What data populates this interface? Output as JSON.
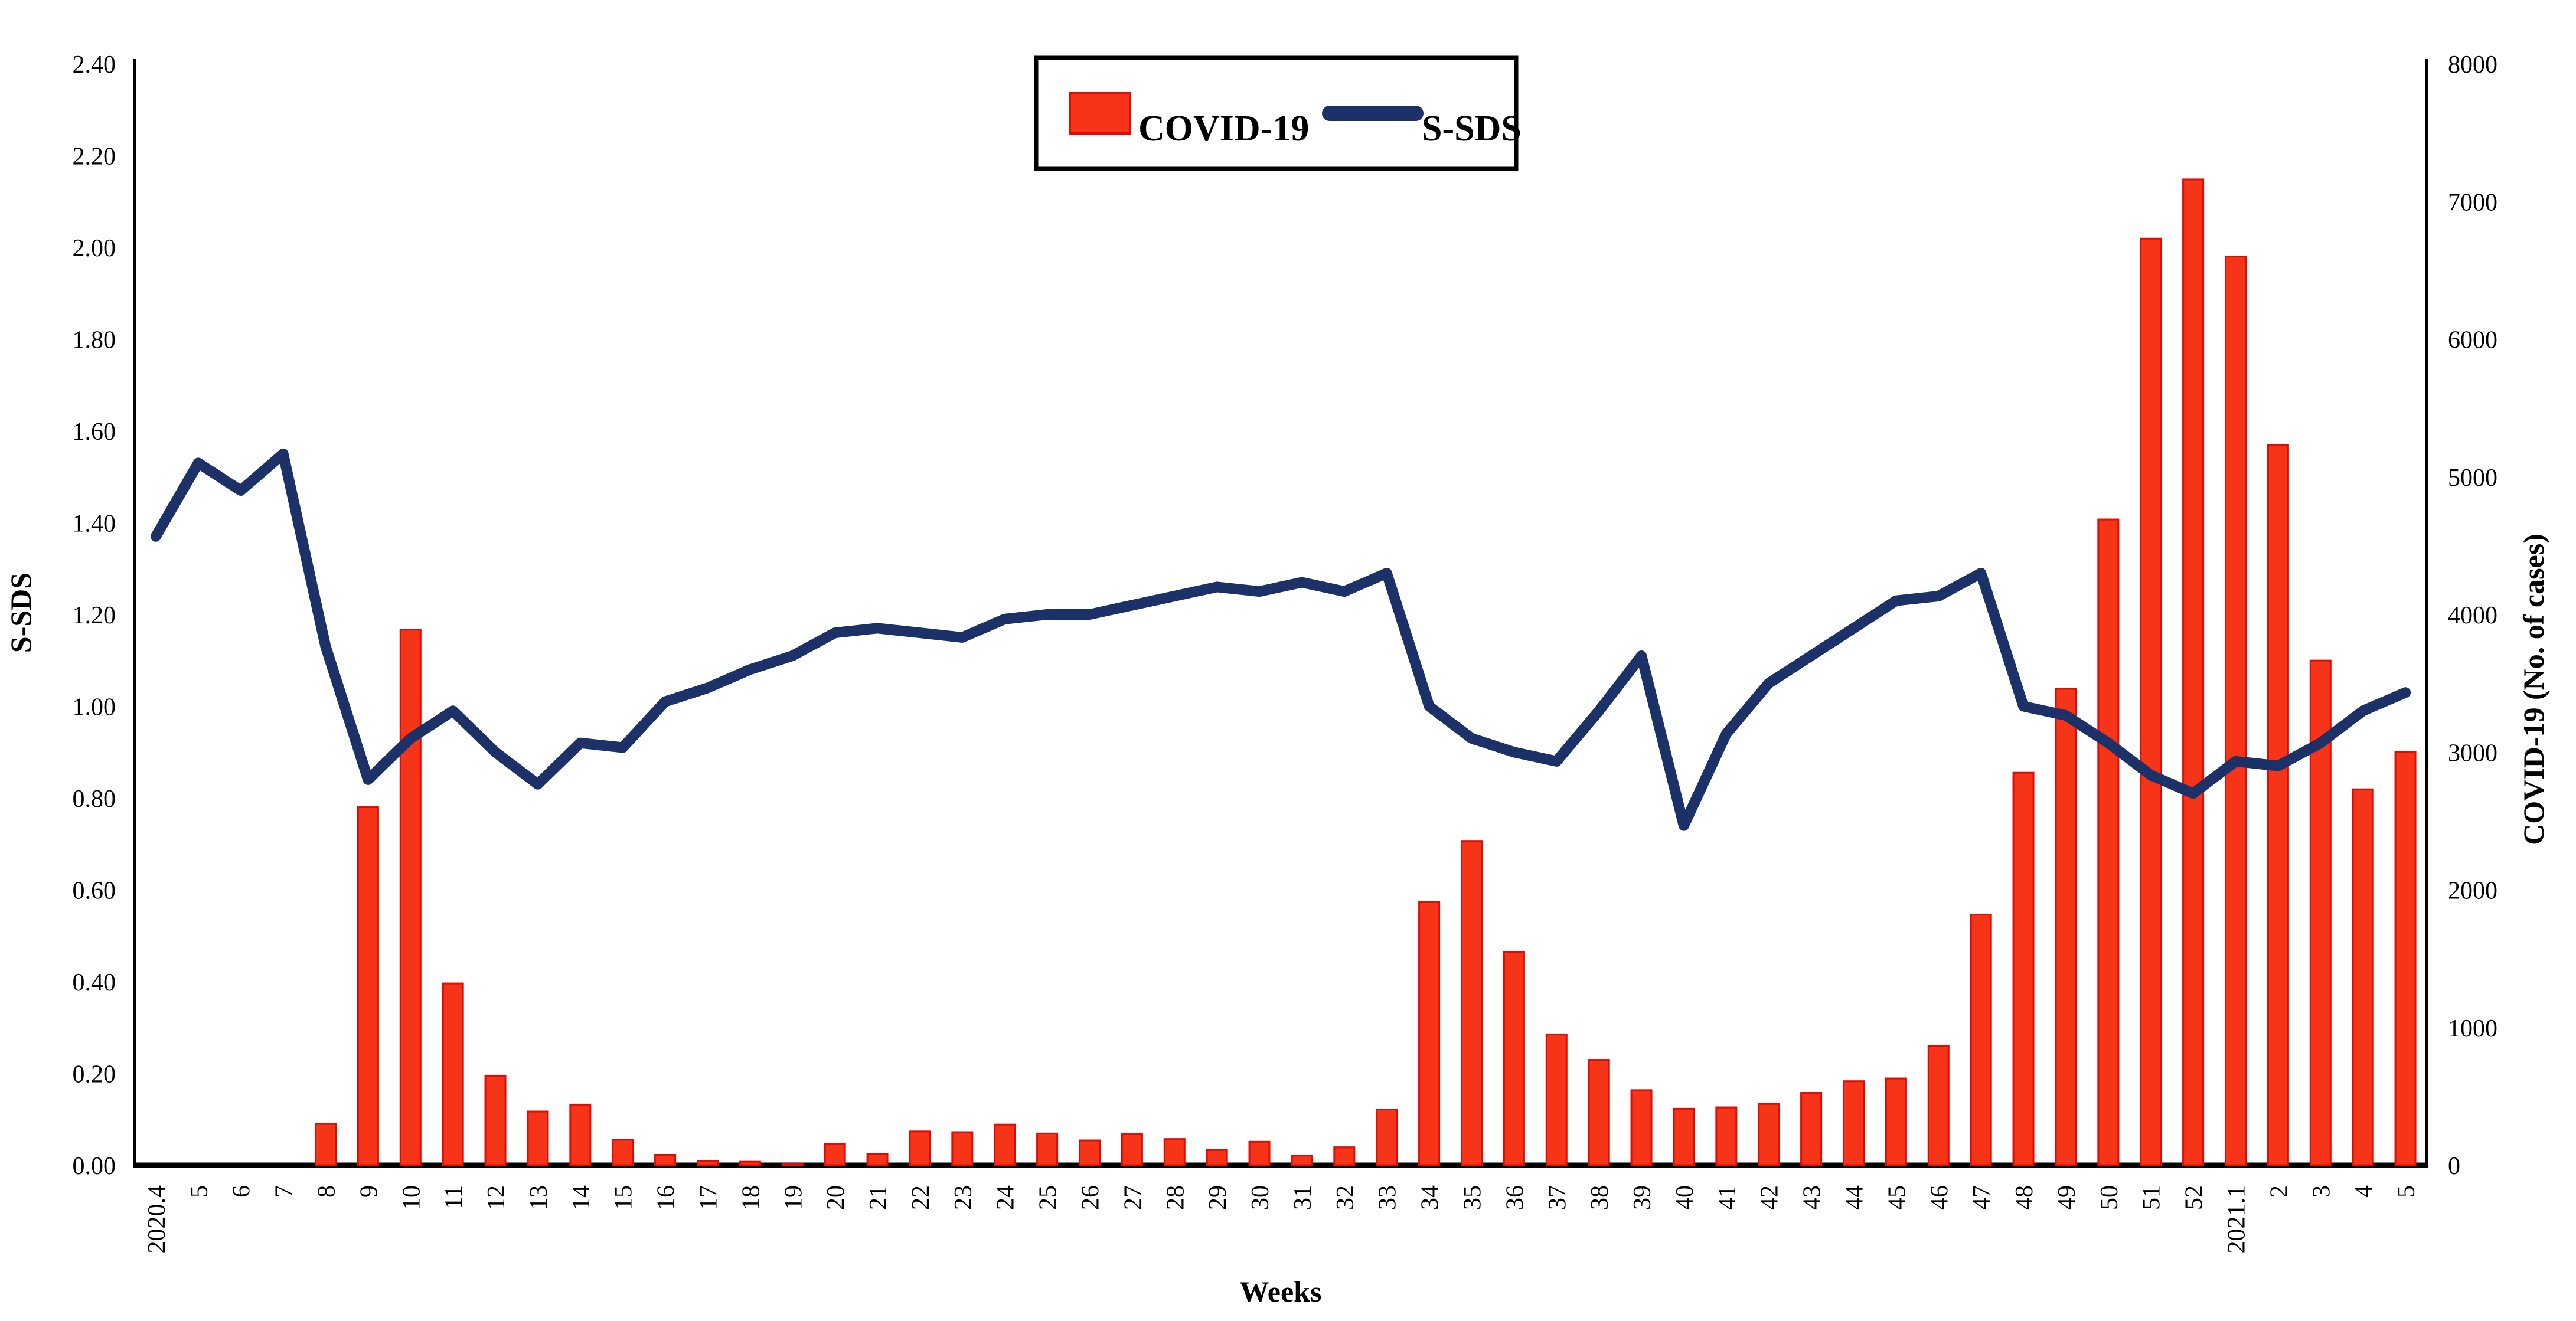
{
  "chart_data": {
    "type": "combo-bar-line",
    "title": "",
    "categories": [
      "2020.4",
      "5",
      "6",
      "7",
      "8",
      "9",
      "10",
      "11",
      "12",
      "13",
      "14",
      "15",
      "16",
      "17",
      "18",
      "19",
      "20",
      "21",
      "22",
      "23",
      "24",
      "25",
      "26",
      "27",
      "28",
      "29",
      "30",
      "31",
      "32",
      "33",
      "34",
      "35",
      "36",
      "37",
      "38",
      "39",
      "40",
      "41",
      "42",
      "43",
      "44",
      "45",
      "46",
      "47",
      "48",
      "49",
      "50",
      "51",
      "52",
      "2021.1",
      "2",
      "3",
      "4",
      "5"
    ],
    "series": [
      {
        "name": "COVID-19",
        "type": "bar",
        "axis": "right",
        "color": "#f63418",
        "border_color": "#e00b04",
        "values": [
          0,
          0,
          0,
          0,
          300,
          2600,
          3890,
          1320,
          650,
          390,
          440,
          185,
          75,
          30,
          25,
          10,
          155,
          80,
          245,
          240,
          295,
          230,
          180,
          225,
          190,
          110,
          170,
          70,
          130,
          405,
          1910,
          2355,
          1550,
          950,
          765,
          545,
          410,
          420,
          445,
          525,
          610,
          630,
          865,
          1820,
          2850,
          3460,
          4690,
          6730,
          7160,
          6600,
          5230,
          3665,
          2730,
          3000
        ]
      },
      {
        "name": "S-SDS",
        "type": "line",
        "axis": "left",
        "color": "#1b3168",
        "values": [
          1.37,
          1.53,
          1.47,
          1.55,
          1.13,
          0.84,
          0.93,
          0.99,
          0.9,
          0.83,
          0.92,
          0.91,
          1.01,
          1.04,
          1.08,
          1.11,
          1.16,
          1.17,
          1.16,
          1.15,
          1.19,
          1.2,
          1.2,
          1.22,
          1.24,
          1.26,
          1.25,
          1.27,
          1.25,
          1.29,
          1.0,
          0.93,
          0.9,
          0.88,
          0.99,
          1.11,
          0.74,
          0.94,
          1.05,
          1.11,
          1.17,
          1.23,
          1.24,
          1.29,
          1.0,
          0.98,
          0.92,
          0.85,
          0.81,
          0.88,
          0.87,
          0.92,
          0.99,
          1.03
        ]
      }
    ],
    "left_axis": {
      "title": "S-SDS",
      "min": 0,
      "max": 2.4,
      "step": 0.2,
      "tick_labels": [
        "0.00",
        "0.20",
        "0.40",
        "0.60",
        "0.80",
        "1.00",
        "1.20",
        "1.40",
        "1.60",
        "1.80",
        "2.00",
        "2.20",
        "2.40"
      ]
    },
    "right_axis": {
      "title": "COVID-19 (No. of cases)",
      "min": 0,
      "max": 8000,
      "step": 1000,
      "tick_labels": [
        "0",
        "1000",
        "2000",
        "3000",
        "4000",
        "5000",
        "6000",
        "7000",
        "8000"
      ]
    },
    "x_axis": {
      "title": "Weeks"
    },
    "legend": {
      "position": "top-center",
      "items": [
        {
          "label": "COVID-19",
          "swatch": "bar-swatch",
          "color": "#f63418"
        },
        {
          "label": "S-SDS",
          "swatch": "line-swatch",
          "color": "#1b3168"
        }
      ]
    },
    "grid": false,
    "background": "#ffffff",
    "axis_color": "#000000"
  }
}
